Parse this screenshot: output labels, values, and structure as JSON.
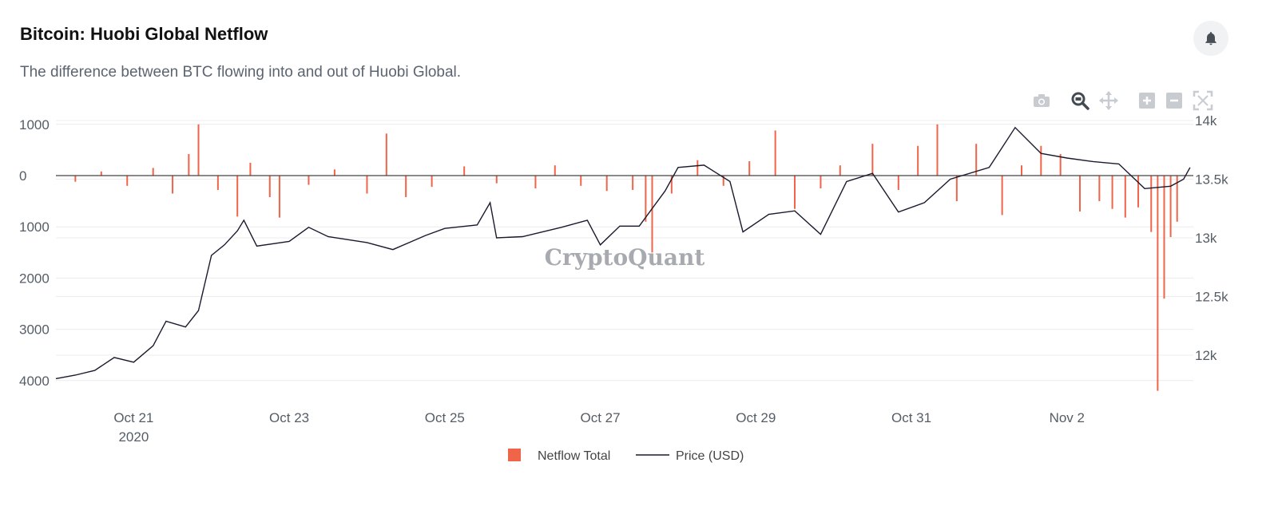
{
  "header": {
    "title": "Bitcoin: Huobi Global Netflow",
    "subtitle": "The difference between BTC flowing into and out of Huobi Global."
  },
  "watermark": "CryptoQuant",
  "toolbar": {
    "icons": [
      "camera-icon",
      "zoom-icon",
      "pan-icon",
      "zoom-in-icon",
      "zoom-out-icon",
      "autoscale-icon"
    ],
    "bell_icon": "bell-icon"
  },
  "colors": {
    "netflow": "#f06449",
    "price": "#1a1a2e",
    "grid": "#ececec",
    "zero_line": "#444444"
  },
  "chart_data": {
    "type": "bar+line",
    "title": "Bitcoin: Huobi Global Netflow",
    "x_range": [
      "2020-10-20",
      "2020-11-03"
    ],
    "x_ticks": [
      {
        "date": "2020-10-21",
        "label": "Oct 21",
        "sublabel": "2020"
      },
      {
        "date": "2020-10-23",
        "label": "Oct 23"
      },
      {
        "date": "2020-10-25",
        "label": "Oct 25"
      },
      {
        "date": "2020-10-27",
        "label": "Oct 27"
      },
      {
        "date": "2020-10-29",
        "label": "Oct 29"
      },
      {
        "date": "2020-10-31",
        "label": "Oct 31"
      },
      {
        "date": "2020-11-02",
        "label": "Nov 2"
      }
    ],
    "y_left": {
      "range": [
        1000,
        -4000
      ],
      "ticks": [
        1000,
        0,
        -1000,
        -2000,
        -3000,
        -4000
      ],
      "tick_labels": [
        "1000",
        "0",
        "1000",
        "2000",
        "3000",
        "4000"
      ]
    },
    "y_right": {
      "range": [
        11800,
        14000
      ],
      "ticks": [
        12000,
        12500,
        13000,
        13500,
        14000
      ],
      "tick_labels": [
        "12k",
        "12.5k",
        "13k",
        "13.5k",
        "14k"
      ]
    },
    "legend": {
      "placement": "bottom-center"
    },
    "series": [
      {
        "name": "Netflow Total",
        "type": "bar",
        "axis": "left",
        "points": [
          [
            "2020-10-20T06:00",
            -120
          ],
          [
            "2020-10-20T14:00",
            80
          ],
          [
            "2020-10-20T22:00",
            -200
          ],
          [
            "2020-10-21T06:00",
            150
          ],
          [
            "2020-10-21T12:00",
            -350
          ],
          [
            "2020-10-21T17:00",
            420
          ],
          [
            "2020-10-21T20:00",
            1000
          ],
          [
            "2020-10-22T02:00",
            -280
          ],
          [
            "2020-10-22T08:00",
            -800
          ],
          [
            "2020-10-22T12:00",
            250
          ],
          [
            "2020-10-22T18:00",
            -420
          ],
          [
            "2020-10-22T21:00",
            -820
          ],
          [
            "2020-10-23T06:00",
            -180
          ],
          [
            "2020-10-23T14:00",
            120
          ],
          [
            "2020-10-24T00:00",
            -350
          ],
          [
            "2020-10-24T06:00",
            820
          ],
          [
            "2020-10-24T12:00",
            -420
          ],
          [
            "2020-10-24T20:00",
            -220
          ],
          [
            "2020-10-25T06:00",
            180
          ],
          [
            "2020-10-25T16:00",
            -150
          ],
          [
            "2020-10-26T04:00",
            -250
          ],
          [
            "2020-10-26T10:00",
            200
          ],
          [
            "2020-10-26T18:00",
            -200
          ],
          [
            "2020-10-27T02:00",
            -300
          ],
          [
            "2020-10-27T10:00",
            -280
          ],
          [
            "2020-10-27T14:00",
            -900
          ],
          [
            "2020-10-27T16:00",
            -1500
          ],
          [
            "2020-10-27T22:00",
            -350
          ],
          [
            "2020-10-28T06:00",
            300
          ],
          [
            "2020-10-28T14:00",
            -200
          ],
          [
            "2020-10-28T22:00",
            280
          ],
          [
            "2020-10-29T06:00",
            880
          ],
          [
            "2020-10-29T12:00",
            -650
          ],
          [
            "2020-10-29T20:00",
            -250
          ],
          [
            "2020-10-30T02:00",
            200
          ],
          [
            "2020-10-30T12:00",
            620
          ],
          [
            "2020-10-30T20:00",
            -280
          ],
          [
            "2020-10-31T02:00",
            580
          ],
          [
            "2020-10-31T08:00",
            1000
          ],
          [
            "2020-10-31T14:00",
            -500
          ],
          [
            "2020-10-31T20:00",
            620
          ],
          [
            "2020-11-01T04:00",
            -770
          ],
          [
            "2020-11-01T10:00",
            200
          ],
          [
            "2020-11-01T16:00",
            580
          ],
          [
            "2020-11-01T22:00",
            420
          ],
          [
            "2020-11-02T04:00",
            -700
          ],
          [
            "2020-11-02T10:00",
            -500
          ],
          [
            "2020-11-02T14:00",
            -650
          ],
          [
            "2020-11-02T18:00",
            -820
          ],
          [
            "2020-11-02T22:00",
            -620
          ],
          [
            "2020-11-03T02:00",
            -1100
          ],
          [
            "2020-11-03T04:00",
            -4200
          ],
          [
            "2020-11-03T06:00",
            -2400
          ],
          [
            "2020-11-03T08:00",
            -1200
          ],
          [
            "2020-11-03T10:00",
            -900
          ]
        ]
      },
      {
        "name": "Price (USD)",
        "type": "line",
        "axis": "right",
        "points": [
          [
            "2020-10-20T00:00",
            11800
          ],
          [
            "2020-10-20T06:00",
            11830
          ],
          [
            "2020-10-20T12:00",
            11870
          ],
          [
            "2020-10-20T18:00",
            11980
          ],
          [
            "2020-10-21T00:00",
            11940
          ],
          [
            "2020-10-21T06:00",
            12080
          ],
          [
            "2020-10-21T10:00",
            12290
          ],
          [
            "2020-10-21T16:00",
            12240
          ],
          [
            "2020-10-21T20:00",
            12380
          ],
          [
            "2020-10-22T00:00",
            12850
          ],
          [
            "2020-10-22T04:00",
            12940
          ],
          [
            "2020-10-22T08:00",
            13060
          ],
          [
            "2020-10-22T10:00",
            13150
          ],
          [
            "2020-10-22T14:00",
            12930
          ],
          [
            "2020-10-23T00:00",
            12970
          ],
          [
            "2020-10-23T06:00",
            13090
          ],
          [
            "2020-10-23T12:00",
            13010
          ],
          [
            "2020-10-24T00:00",
            12960
          ],
          [
            "2020-10-24T08:00",
            12900
          ],
          [
            "2020-10-24T18:00",
            13020
          ],
          [
            "2020-10-25T00:00",
            13080
          ],
          [
            "2020-10-25T10:00",
            13110
          ],
          [
            "2020-10-25T14:00",
            13300
          ],
          [
            "2020-10-25T16:00",
            13000
          ],
          [
            "2020-10-26T00:00",
            13010
          ],
          [
            "2020-10-26T12:00",
            13090
          ],
          [
            "2020-10-26T20:00",
            13150
          ],
          [
            "2020-10-27T00:00",
            12940
          ],
          [
            "2020-10-27T06:00",
            13100
          ],
          [
            "2020-10-27T12:00",
            13100
          ],
          [
            "2020-10-27T20:00",
            13400
          ],
          [
            "2020-10-28T00:00",
            13600
          ],
          [
            "2020-10-28T08:00",
            13620
          ],
          [
            "2020-10-28T16:00",
            13480
          ],
          [
            "2020-10-28T20:00",
            13050
          ],
          [
            "2020-10-29T04:00",
            13200
          ],
          [
            "2020-10-29T12:00",
            13230
          ],
          [
            "2020-10-29T20:00",
            13030
          ],
          [
            "2020-10-30T04:00",
            13480
          ],
          [
            "2020-10-30T12:00",
            13550
          ],
          [
            "2020-10-30T20:00",
            13220
          ],
          [
            "2020-10-31T04:00",
            13300
          ],
          [
            "2020-10-31T12:00",
            13500
          ],
          [
            "2020-11-01T00:00",
            13600
          ],
          [
            "2020-11-01T08:00",
            13940
          ],
          [
            "2020-11-01T16:00",
            13720
          ],
          [
            "2020-11-02T00:00",
            13680
          ],
          [
            "2020-11-02T08:00",
            13650
          ],
          [
            "2020-11-02T16:00",
            13630
          ],
          [
            "2020-11-03T00:00",
            13420
          ],
          [
            "2020-11-03T08:00",
            13440
          ],
          [
            "2020-11-03T12:00",
            13500
          ],
          [
            "2020-11-03T14:00",
            13600
          ]
        ]
      }
    ]
  }
}
